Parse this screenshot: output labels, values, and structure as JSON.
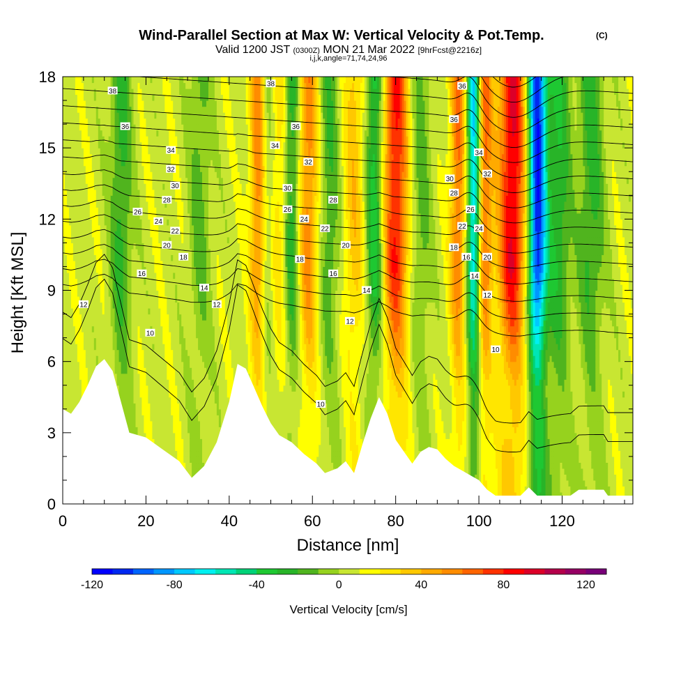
{
  "chart_data": {
    "type": "heatmap",
    "title": "Wind-Parallel Section at Max W: Vertical Velocity & Pot.Temp.",
    "title_suffix": "(C)",
    "subtitle_parts": [
      "Valid 1200 JST ",
      "(0300Z)",
      " MON 21 Mar 2022 ",
      "[9hrFcst@2216z]"
    ],
    "subtitle2": "i,j,k,angle=71,74,24,96",
    "xlabel": "Distance [nm]",
    "ylabel": "Height [Kft MSL]",
    "xlim": [
      0,
      137
    ],
    "ylim": [
      0,
      18
    ],
    "x_ticks": [
      "0",
      "20",
      "40",
      "60",
      "80",
      "100",
      "120"
    ],
    "y_ticks": [
      "0",
      "3",
      "6",
      "9",
      "12",
      "15",
      "18"
    ],
    "colorbar": {
      "label": "Vertical Velocity [cm/s]",
      "range": [
        -120,
        130
      ],
      "tick_labels": [
        "-120",
        "-80",
        "-40",
        "0",
        "40",
        "80",
        "120"
      ],
      "colors": [
        "#0000ff",
        "#0028f0",
        "#0064ff",
        "#0096ff",
        "#00c8ff",
        "#00f0f0",
        "#00e6b4",
        "#00d278",
        "#1ec832",
        "#28b428",
        "#50b41e",
        "#96d21e",
        "#c8e632",
        "#ffff00",
        "#ffe600",
        "#ffc800",
        "#ffaa00",
        "#ff8c00",
        "#ff6400",
        "#ff3200",
        "#ff0000",
        "#dc0028",
        "#b4004b",
        "#960064",
        "#780078"
      ]
    },
    "velocity_cores": [
      {
        "x": 14,
        "width": 2.5,
        "w": -30
      },
      {
        "x": 33,
        "width": 2.5,
        "w": -20
      },
      {
        "x": 47,
        "width": 2.0,
        "w": 55
      },
      {
        "x": 49,
        "width": 2.0,
        "w": -25
      },
      {
        "x": 52,
        "width": 2.5,
        "w": 25
      },
      {
        "x": 55,
        "width": 2.0,
        "w": -40
      },
      {
        "x": 59,
        "width": 2.5,
        "w": 50
      },
      {
        "x": 64,
        "width": 2.5,
        "w": -25
      },
      {
        "x": 70,
        "width": 2.5,
        "w": 30
      },
      {
        "x": 75,
        "width": 2.0,
        "w": -45
      },
      {
        "x": 80,
        "width": 3.0,
        "w": 75
      },
      {
        "x": 86,
        "width": 2.5,
        "w": -20
      },
      {
        "x": 95,
        "width": 2.0,
        "w": 55
      },
      {
        "x": 99,
        "width": 1.8,
        "w": -95
      },
      {
        "x": 101,
        "width": 2.0,
        "w": 70
      },
      {
        "x": 108,
        "width": 3.5,
        "w": 85
      },
      {
        "x": 114,
        "width": 2.2,
        "w": -115
      },
      {
        "x": 119,
        "width": 3.0,
        "w": -35
      },
      {
        "x": 127,
        "width": 3.0,
        "w": -30
      }
    ],
    "terrain": [
      [
        0,
        4.0
      ],
      [
        2,
        3.8
      ],
      [
        4,
        4.3
      ],
      [
        6,
        5.0
      ],
      [
        8,
        5.8
      ],
      [
        10,
        6.1
      ],
      [
        12,
        5.6
      ],
      [
        14,
        4.3
      ],
      [
        16,
        3.0
      ],
      [
        20,
        2.8
      ],
      [
        24,
        2.3
      ],
      [
        28,
        1.8
      ],
      [
        31,
        1.1
      ],
      [
        34,
        1.6
      ],
      [
        37,
        2.6
      ],
      [
        40,
        4.3
      ],
      [
        42,
        5.9
      ],
      [
        44,
        5.7
      ],
      [
        46,
        4.9
      ],
      [
        48,
        4.1
      ],
      [
        50,
        3.4
      ],
      [
        52,
        2.9
      ],
      [
        55,
        2.6
      ],
      [
        58,
        2.1
      ],
      [
        61,
        1.7
      ],
      [
        63,
        1.3
      ],
      [
        66,
        1.5
      ],
      [
        68,
        1.8
      ],
      [
        70,
        1.3
      ],
      [
        72,
        2.5
      ],
      [
        74,
        3.6
      ],
      [
        76,
        4.5
      ],
      [
        78,
        3.8
      ],
      [
        80,
        2.7
      ],
      [
        82,
        2.2
      ],
      [
        84,
        1.7
      ],
      [
        86,
        2.2
      ],
      [
        88,
        2.4
      ],
      [
        90,
        2.3
      ],
      [
        92,
        1.9
      ],
      [
        94,
        1.6
      ],
      [
        96,
        1.4
      ],
      [
        98,
        1.2
      ],
      [
        100,
        1.0
      ],
      [
        102,
        0.6
      ],
      [
        104,
        0.35
      ],
      [
        110,
        0.35
      ],
      [
        112,
        0.7
      ],
      [
        114,
        0.35
      ],
      [
        122,
        0.35
      ],
      [
        124,
        0.6
      ],
      [
        130,
        0.6
      ],
      [
        131,
        0.35
      ],
      [
        137,
        0.35
      ]
    ],
    "theta_labels": [
      {
        "x": 12,
        "y": 17.4,
        "text": "38"
      },
      {
        "x": 50,
        "y": 17.7,
        "text": "38"
      },
      {
        "x": 96,
        "y": 17.6,
        "text": "36"
      },
      {
        "x": 15,
        "y": 15.9,
        "text": "36"
      },
      {
        "x": 56,
        "y": 15.9,
        "text": "36"
      },
      {
        "x": 94,
        "y": 16.2,
        "text": "36"
      },
      {
        "x": 26,
        "y": 14.9,
        "text": "34"
      },
      {
        "x": 51,
        "y": 15.1,
        "text": "34"
      },
      {
        "x": 100,
        "y": 14.8,
        "text": "34"
      },
      {
        "x": 26,
        "y": 14.1,
        "text": "32"
      },
      {
        "x": 59,
        "y": 14.4,
        "text": "32"
      },
      {
        "x": 102,
        "y": 13.9,
        "text": "32"
      },
      {
        "x": 27,
        "y": 13.4,
        "text": "30"
      },
      {
        "x": 54,
        "y": 13.3,
        "text": "30"
      },
      {
        "x": 93,
        "y": 13.7,
        "text": "30"
      },
      {
        "x": 25,
        "y": 12.8,
        "text": "28"
      },
      {
        "x": 65,
        "y": 12.8,
        "text": "28"
      },
      {
        "x": 94,
        "y": 13.1,
        "text": "28"
      },
      {
        "x": 18,
        "y": 12.3,
        "text": "26"
      },
      {
        "x": 54,
        "y": 12.4,
        "text": "26"
      },
      {
        "x": 98,
        "y": 12.4,
        "text": "26"
      },
      {
        "x": 23,
        "y": 11.9,
        "text": "24"
      },
      {
        "x": 58,
        "y": 12.0,
        "text": "24"
      },
      {
        "x": 100,
        "y": 11.6,
        "text": "24"
      },
      {
        "x": 27,
        "y": 11.5,
        "text": "22"
      },
      {
        "x": 63,
        "y": 11.6,
        "text": "22"
      },
      {
        "x": 96,
        "y": 11.7,
        "text": "22"
      },
      {
        "x": 25,
        "y": 10.9,
        "text": "20"
      },
      {
        "x": 68,
        "y": 10.9,
        "text": "20"
      },
      {
        "x": 102,
        "y": 10.4,
        "text": "20"
      },
      {
        "x": 29,
        "y": 10.4,
        "text": "18"
      },
      {
        "x": 57,
        "y": 10.3,
        "text": "18"
      },
      {
        "x": 94,
        "y": 10.8,
        "text": "18"
      },
      {
        "x": 19,
        "y": 9.7,
        "text": "16"
      },
      {
        "x": 65,
        "y": 9.7,
        "text": "16"
      },
      {
        "x": 97,
        "y": 10.4,
        "text": "16"
      },
      {
        "x": 34,
        "y": 9.1,
        "text": "14"
      },
      {
        "x": 73,
        "y": 9.0,
        "text": "14"
      },
      {
        "x": 99,
        "y": 9.6,
        "text": "14"
      },
      {
        "x": 5,
        "y": 8.4,
        "text": "12"
      },
      {
        "x": 37,
        "y": 8.4,
        "text": "12"
      },
      {
        "x": 69,
        "y": 7.7,
        "text": "12"
      },
      {
        "x": 102,
        "y": 8.8,
        "text": "12"
      },
      {
        "x": 21,
        "y": 7.2,
        "text": "10"
      },
      {
        "x": 62,
        "y": 4.2,
        "text": "10"
      },
      {
        "x": 104,
        "y": 6.5,
        "text": "10"
      }
    ]
  }
}
